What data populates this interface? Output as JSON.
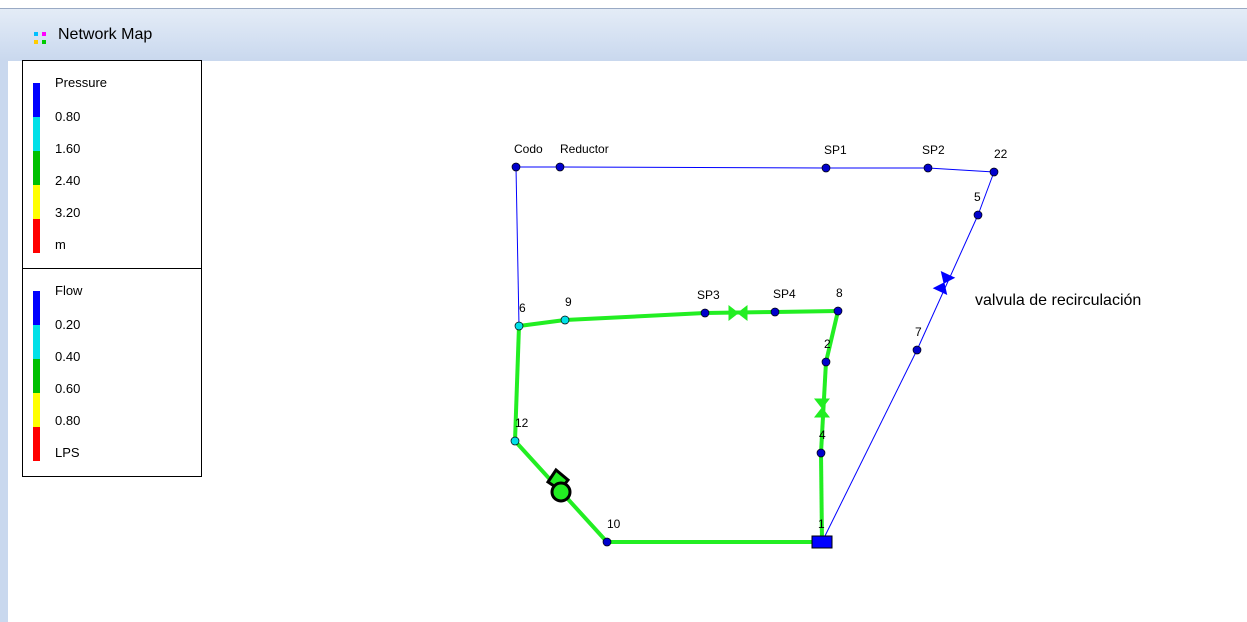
{
  "window": {
    "title": "Network Map"
  },
  "legends": [
    {
      "title": "Pressure",
      "labels": [
        "0.80",
        "1.60",
        "2.40",
        "3.20"
      ],
      "unit": "m"
    },
    {
      "title": "Flow",
      "labels": [
        "0.20",
        "0.40",
        "0.60",
        "0.80"
      ],
      "unit": "LPS"
    }
  ],
  "nodes": [
    {
      "label": "Codo"
    },
    {
      "label": "Reductor"
    },
    {
      "label": "SP1"
    },
    {
      "label": "SP2"
    },
    {
      "label": "22"
    },
    {
      "label": "5"
    },
    {
      "label": "7"
    },
    {
      "label": "1"
    },
    {
      "label": "4"
    },
    {
      "label": "2"
    },
    {
      "label": "8"
    },
    {
      "label": "SP4"
    },
    {
      "label": "SP3"
    },
    {
      "label": "9"
    },
    {
      "label": "6"
    },
    {
      "label": "12"
    },
    {
      "label": "10"
    }
  ],
  "annotation": "valvula de recirculación"
}
